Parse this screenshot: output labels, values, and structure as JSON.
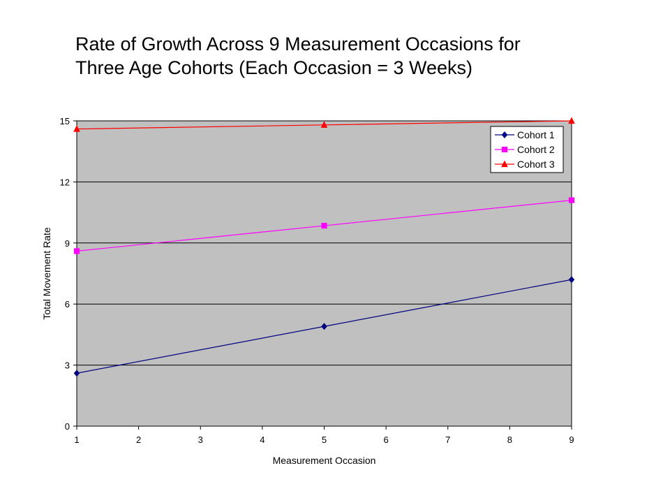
{
  "chart_data": {
    "type": "line",
    "title_lines": [
      "Rate of Growth Across 9 Measurement Occasions for",
      "Three Age Cohorts (Each Occasion = 3 Weeks)"
    ],
    "xlabel": "Measurement Occasion",
    "ylabel": "Total Movement Rate",
    "xlim": [
      1,
      9
    ],
    "ylim": [
      0,
      15
    ],
    "xticks": [
      1,
      2,
      3,
      4,
      5,
      6,
      7,
      8,
      9
    ],
    "yticks": [
      0,
      3,
      6,
      9,
      12,
      15
    ],
    "grid": "horizontal",
    "legend_position": "top-right",
    "plot_background": "#c0c0c0",
    "series": [
      {
        "name": "Cohort 1",
        "color": "#000080",
        "marker": "diamond",
        "x": [
          1,
          5,
          9
        ],
        "y": [
          2.6,
          4.9,
          7.2
        ]
      },
      {
        "name": "Cohort 2",
        "color": "#ff00ff",
        "marker": "square",
        "x": [
          1,
          5,
          9
        ],
        "y": [
          8.6,
          9.85,
          11.1
        ]
      },
      {
        "name": "Cohort 3",
        "color": "#ff0000",
        "marker": "triangle",
        "x": [
          1,
          5,
          9
        ],
        "y": [
          14.6,
          14.8,
          15.0
        ]
      }
    ]
  }
}
